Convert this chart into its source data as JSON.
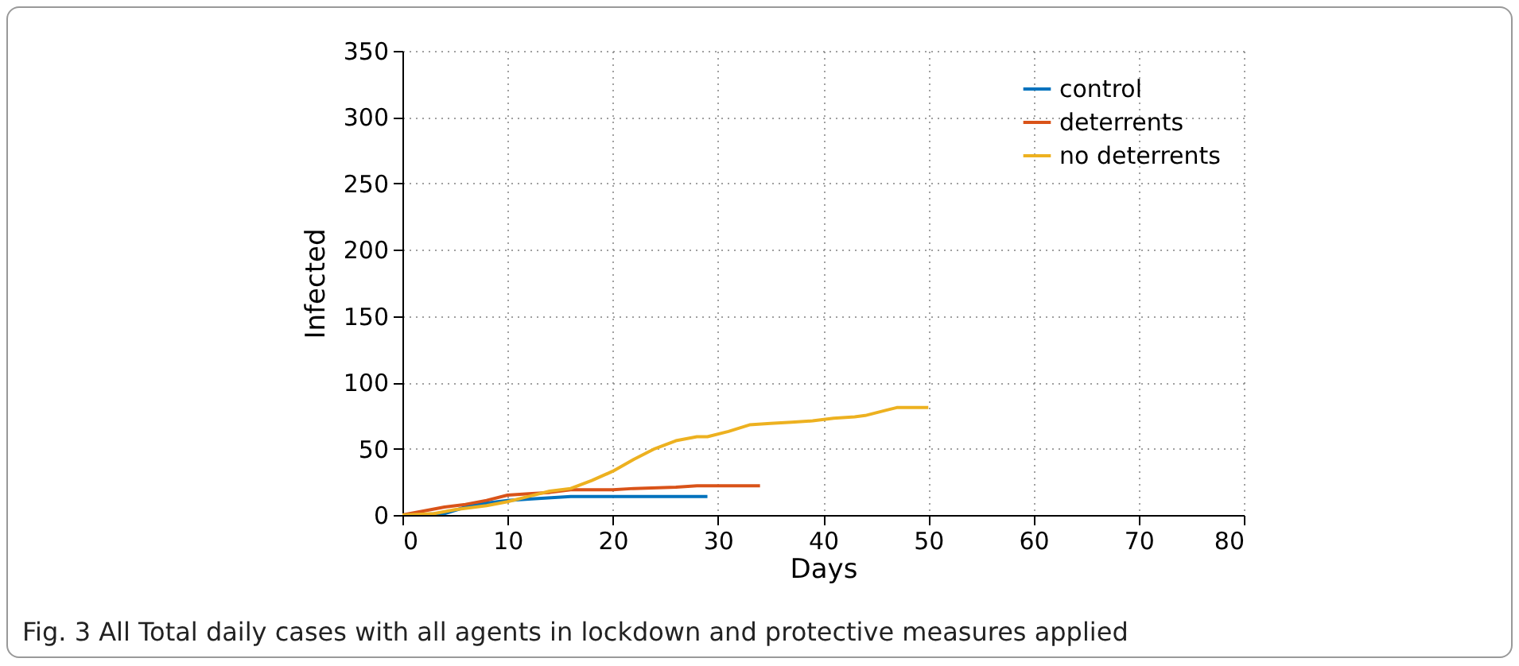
{
  "chart_data": {
    "type": "line",
    "xlabel": "Days",
    "ylabel": "Infected",
    "annotations": [
      "Fig. 3 All Total daily cases with all agents in lockdown and protective measures applied"
    ],
    "series": [
      {
        "name": "control",
        "color": "#0072bd",
        "x": [
          0,
          4,
          6,
          8,
          10,
          12,
          16,
          29
        ],
        "values": [
          0,
          1,
          6,
          9,
          11,
          12,
          14,
          14
        ]
      },
      {
        "name": "deterrents",
        "color": "#d95319",
        "x": [
          0,
          2,
          4,
          6,
          8,
          10,
          12,
          14,
          16,
          20,
          22,
          26,
          28,
          34
        ],
        "values": [
          0,
          3,
          6,
          8,
          11,
          15,
          16,
          17,
          19,
          19,
          20,
          21,
          22,
          22
        ]
      },
      {
        "name": "no deterrents",
        "color": "#edb120",
        "x": [
          0,
          3,
          5,
          8,
          10,
          12,
          14,
          16,
          18,
          20,
          22,
          24,
          26,
          28,
          29,
          31,
          33,
          35,
          37,
          39,
          41,
          43,
          44,
          46,
          47,
          50
        ],
        "values": [
          0,
          1,
          4,
          7,
          10,
          14,
          18,
          20,
          26,
          33,
          42,
          50,
          56,
          59,
          59,
          63,
          68,
          69,
          70,
          71,
          73,
          74,
          75,
          79,
          81,
          81
        ]
      }
    ],
    "xlim": [
      0,
      80
    ],
    "xticks": [
      0,
      10,
      20,
      30,
      40,
      50,
      60,
      70,
      80
    ],
    "ylim": [
      0,
      350
    ],
    "yticks": [
      0,
      50,
      100,
      150,
      200,
      250,
      300,
      350
    ],
    "grid": true,
    "legend": "top right",
    "marker": "none",
    "line_style": "solid"
  }
}
